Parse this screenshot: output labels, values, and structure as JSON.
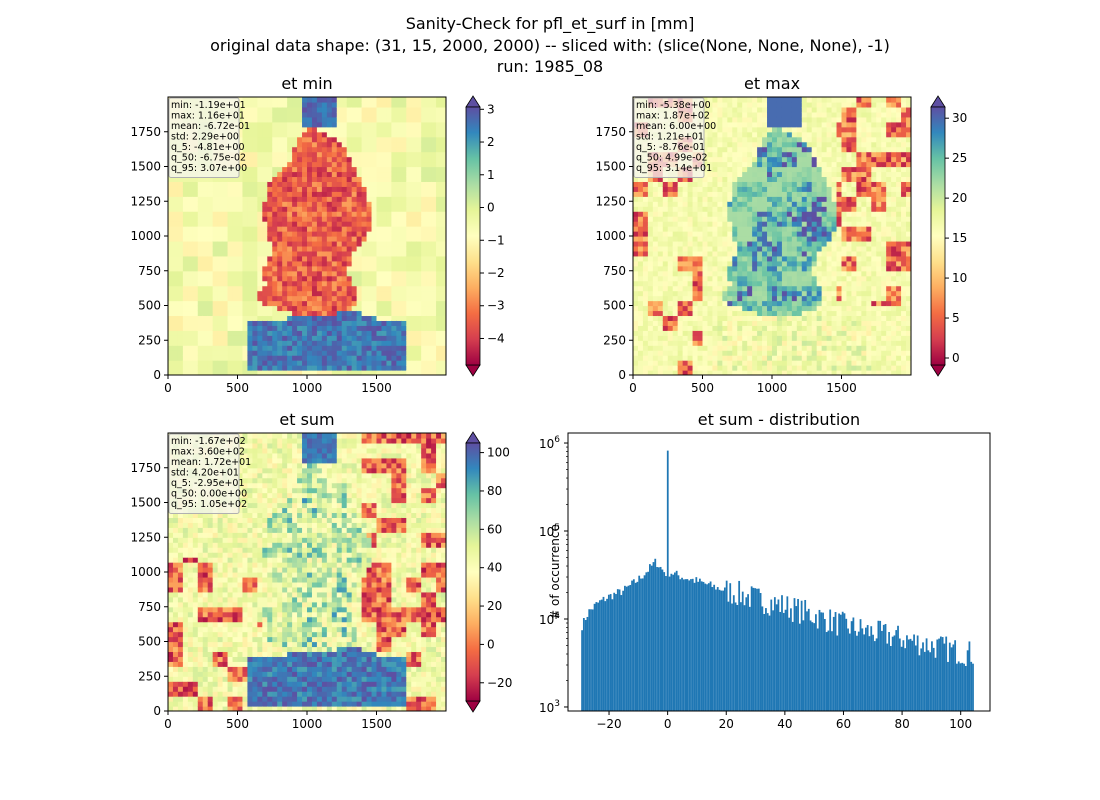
{
  "figure": {
    "title_lines": [
      "Sanity-Check for pfl_et_surf in [mm]",
      "original data shape: (31, 15, 2000, 2000) -- sliced with: (slice(None, None, None), -1)",
      "run: 1985_08"
    ]
  },
  "chart_data": [
    {
      "type": "heatmap",
      "title": "et min",
      "xlim": [
        0,
        2000
      ],
      "ylim": [
        0,
        2000
      ],
      "xticks": [
        0,
        500,
        1000,
        1500
      ],
      "yticks": [
        0,
        250,
        500,
        750,
        1000,
        1250,
        1500,
        1750
      ],
      "colormap": "Spectral",
      "colorbar": {
        "vmin": -4.81,
        "vmax": 3.07,
        "ticks": [
          -4,
          -3,
          -2,
          -1,
          0,
          1,
          2,
          3
        ],
        "extend": "both"
      },
      "stats": [
        "min: -1.19e+01",
        "max: 1.16e+01",
        "mean: -6.72e-01",
        "std: 2.29e+00",
        "q_5: -4.81e+00",
        "q_50: -6.75e-02",
        "q_95: 3.07e+00"
      ]
    },
    {
      "type": "heatmap",
      "title": "et max",
      "xlim": [
        0,
        2000
      ],
      "ylim": [
        0,
        2000
      ],
      "xticks": [
        0,
        500,
        1000,
        1500
      ],
      "yticks": [
        0,
        250,
        500,
        750,
        1000,
        1250,
        1500,
        1750
      ],
      "colormap": "Spectral",
      "colorbar": {
        "vmin": -0.876,
        "vmax": 31.4,
        "ticks": [
          0,
          5,
          10,
          15,
          20,
          25,
          30
        ],
        "extend": "both"
      },
      "stats": [
        "min: -5.38e+00",
        "max: 1.87e+02",
        "mean: 6.00e+00",
        "std: 1.21e+01",
        "q_5: -8.76e-01",
        "q_50: 4.99e-02",
        "q_95: 3.14e+01"
      ]
    },
    {
      "type": "heatmap",
      "title": "et sum",
      "xlim": [
        0,
        2000
      ],
      "ylim": [
        0,
        2000
      ],
      "xticks": [
        0,
        500,
        1000,
        1500
      ],
      "yticks": [
        0,
        250,
        500,
        750,
        1000,
        1250,
        1500,
        1750
      ],
      "colormap": "Spectral",
      "colorbar": {
        "vmin": -29.5,
        "vmax": 105,
        "ticks": [
          -20,
          0,
          20,
          40,
          60,
          80,
          100
        ],
        "extend": "both"
      },
      "stats": [
        "min: -1.67e+02",
        "max: 3.60e+02",
        "mean: 1.72e+01",
        "std: 4.20e+01",
        "q_5: -2.95e+01",
        "q_50: 0.00e+00",
        "q_95: 1.05e+02"
      ]
    },
    {
      "type": "bar",
      "title": "et sum - distribution",
      "xlabel": "",
      "ylabel": "# of occurrence",
      "yscale": "log",
      "xlim": [
        -34,
        110
      ],
      "ylim": [
        900,
        1300000
      ],
      "xticks": [
        -20,
        0,
        20,
        40,
        60,
        80,
        100
      ],
      "yticks": [
        1000,
        10000,
        100000,
        1000000
      ],
      "ytick_labels": [
        [
          "10",
          "3"
        ],
        [
          "10",
          "4"
        ],
        [
          "10",
          "5"
        ],
        [
          "10",
          "6"
        ]
      ],
      "bar_color": "#1f77b4",
      "bin_range": [
        -29.5,
        104.5
      ],
      "anchors": [
        [
          -29.5,
          8000
        ],
        [
          -27,
          12000
        ],
        [
          -24,
          15000
        ],
        [
          -20,
          18000
        ],
        [
          -15,
          21000
        ],
        [
          -10,
          28000
        ],
        [
          -6,
          38000
        ],
        [
          -4,
          45000
        ],
        [
          -2,
          37000
        ],
        [
          -0.5,
          33000
        ],
        [
          1,
          34000
        ],
        [
          5,
          30000
        ],
        [
          10,
          27000
        ],
        [
          20,
          21000
        ],
        [
          30,
          17000
        ],
        [
          40,
          14000
        ],
        [
          50,
          11000
        ],
        [
          60,
          8500
        ],
        [
          70,
          7000
        ],
        [
          80,
          6000
        ],
        [
          90,
          5000
        ],
        [
          100,
          4200
        ],
        [
          104.5,
          4000
        ]
      ],
      "peak": {
        "x": 0,
        "value": 820000
      }
    }
  ]
}
